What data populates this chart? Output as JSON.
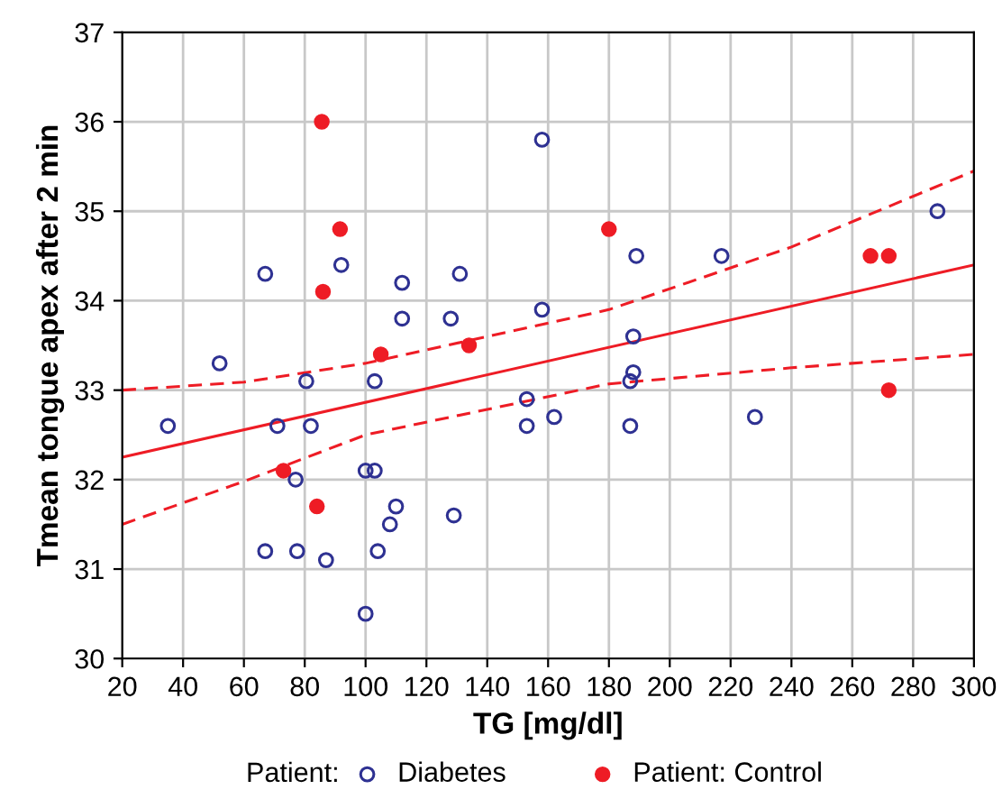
{
  "chart_data": {
    "type": "scatter",
    "xlabel": "TG [mg/dl]",
    "ylabel": "Tmean tongue apex after 2 min",
    "legend_title": "Patient:",
    "legend": "bottom",
    "grid": true,
    "xlim": [
      20,
      300
    ],
    "xticks": [
      20,
      40,
      60,
      80,
      100,
      120,
      140,
      160,
      180,
      200,
      220,
      240,
      260,
      280,
      300
    ],
    "ylim": [
      30,
      37
    ],
    "yticks": [
      30,
      31,
      32,
      33,
      34,
      35,
      36,
      37
    ],
    "series": [
      {
        "name": "Diabetes",
        "marker": "circle",
        "color": "#2e3192",
        "x": [
          35,
          52,
          67,
          67,
          71,
          77,
          77.5,
          80.5,
          82,
          87,
          92,
          100,
          100,
          103,
          103,
          104,
          108,
          110,
          112,
          112,
          128,
          129,
          131,
          153,
          153,
          158,
          158,
          162,
          187,
          187,
          188,
          188,
          189,
          217,
          228,
          288
        ],
        "values": [
          32.6,
          33.3,
          31.2,
          34.3,
          32.6,
          32.0,
          31.2,
          33.1,
          32.6,
          31.1,
          34.4,
          32.1,
          30.5,
          32.1,
          33.1,
          31.2,
          31.5,
          31.7,
          34.2,
          33.8,
          33.8,
          31.6,
          34.3,
          32.9,
          32.6,
          35.8,
          33.9,
          32.7,
          32.6,
          33.1,
          33.2,
          33.6,
          34.5,
          34.5,
          32.7,
          35.0
        ]
      },
      {
        "name": "Patient: Control",
        "marker": "circle",
        "color": "#ee1c25",
        "x": [
          85.6,
          91.6,
          86,
          105,
          134,
          73,
          84,
          180,
          266,
          272,
          272
        ],
        "values": [
          36.0,
          34.8,
          34.1,
          33.4,
          33.5,
          32.1,
          31.7,
          34.8,
          34.5,
          34.5,
          33.0
        ]
      },
      {
        "type": "line",
        "line_style": "solid",
        "color": "#ee1c25",
        "x": [
          20,
          300
        ],
        "values": [
          32.25,
          34.4
        ]
      },
      {
        "type": "line",
        "line_style": "dashed",
        "color": "#ee1c25",
        "x": [
          20,
          60,
          100,
          180,
          240,
          300
        ],
        "values": [
          33.0,
          33.09,
          33.3,
          33.9,
          34.6,
          35.45
        ]
      },
      {
        "type": "line",
        "line_style": "dashed",
        "color": "#ee1c25",
        "x": [
          20,
          60,
          100,
          180,
          240,
          300
        ],
        "values": [
          31.5,
          31.98,
          32.5,
          33.07,
          33.25,
          33.4
        ]
      }
    ]
  }
}
